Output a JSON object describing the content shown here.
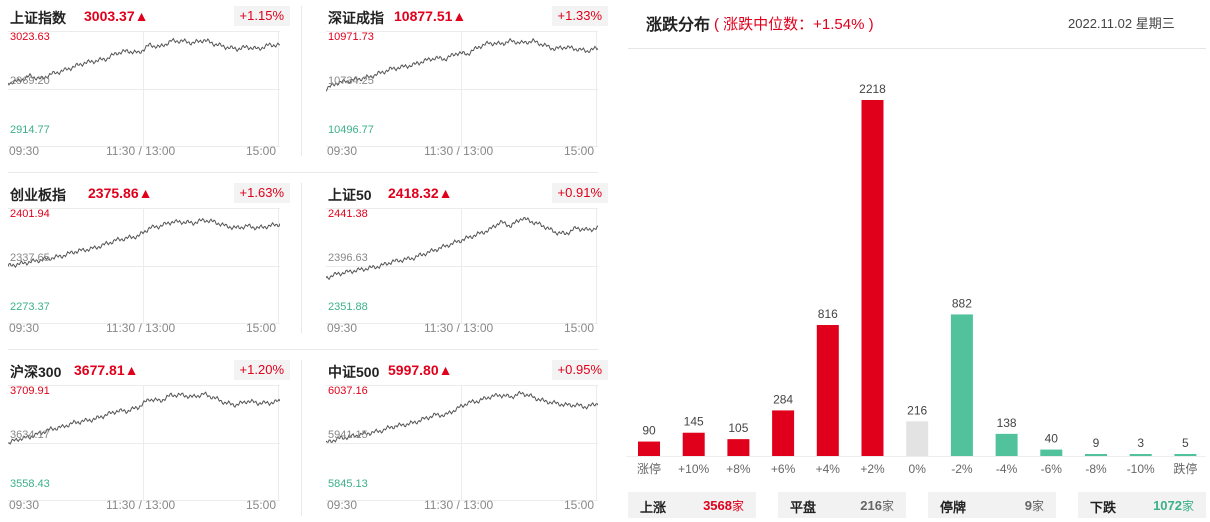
{
  "indices": [
    {
      "name": "上证指数",
      "price": "3003.37▲",
      "change": "+1.15%",
      "high": "3023.63",
      "mid": "2969.20",
      "low": "2914.77",
      "series": [
        52,
        50,
        45,
        48,
        43,
        40,
        36,
        32,
        30,
        28,
        22,
        20,
        22,
        14,
        16,
        10,
        10,
        12,
        9,
        13,
        16,
        18,
        16,
        18,
        14,
        14
      ]
    },
    {
      "name": "深证成指",
      "price": "10877.51▲",
      "change": "+1.33%",
      "high": "10971.73",
      "mid": "10734.25",
      "low": "10496.77",
      "series": [
        58,
        52,
        50,
        48,
        46,
        42,
        38,
        36,
        34,
        30,
        27,
        28,
        22,
        23,
        16,
        12,
        13,
        10,
        12,
        10,
        14,
        18,
        16,
        18,
        20,
        17
      ]
    },
    {
      "name": "创业板指",
      "price": "2375.86▲",
      "change": "+1.63%",
      "high": "2401.94",
      "mid": "2337.65",
      "low": "2273.37",
      "series": [
        58,
        56,
        54,
        52,
        50,
        48,
        44,
        42,
        40,
        36,
        32,
        30,
        28,
        20,
        18,
        14,
        14,
        15,
        12,
        14,
        18,
        20,
        18,
        20,
        18,
        16
      ]
    },
    {
      "name": "上证50",
      "price": "2418.32▲",
      "change": "+0.91%",
      "high": "2441.38",
      "mid": "2396.63",
      "low": "2351.88",
      "series": [
        70,
        66,
        64,
        62,
        60,
        58,
        54,
        52,
        50,
        46,
        42,
        38,
        34,
        30,
        26,
        22,
        14,
        18,
        10,
        14,
        18,
        24,
        26,
        20,
        22,
        20
      ]
    },
    {
      "name": "沪深300",
      "price": "3677.81▲",
      "change": "+1.20%",
      "high": "3709.91",
      "mid": "3634.17",
      "low": "3558.43",
      "series": [
        58,
        54,
        52,
        48,
        44,
        42,
        38,
        36,
        34,
        30,
        26,
        26,
        22,
        14,
        16,
        10,
        10,
        12,
        9,
        13,
        18,
        20,
        16,
        18,
        18,
        16
      ]
    },
    {
      "name": "中证500",
      "price": "5997.80▲",
      "change": "+0.95%",
      "high": "6037.16",
      "mid": "5941.15",
      "low": "5845.13",
      "series": [
        58,
        54,
        52,
        50,
        48,
        46,
        42,
        40,
        38,
        34,
        30,
        30,
        24,
        18,
        16,
        12,
        10,
        12,
        8,
        12,
        16,
        18,
        20,
        20,
        22,
        18
      ]
    }
  ],
  "time_labels": [
    "09:30",
    "11:30 / 13:00",
    "15:00"
  ],
  "distribution": {
    "title": "涨跌分布",
    "subtitle": "( 涨跌中位数：+1.54% )",
    "date": "2022.11.02 星期三"
  },
  "chart_data": {
    "type": "bar",
    "categories": [
      "涨停",
      "+10%",
      "+8%",
      "+6%",
      "+4%",
      "+2%",
      "0%",
      "-2%",
      "-4%",
      "-6%",
      "-8%",
      "-10%",
      "跌停"
    ],
    "values": [
      90,
      145,
      105,
      284,
      816,
      2218,
      216,
      882,
      138,
      40,
      9,
      3,
      5
    ],
    "colors": [
      "#e0001b",
      "#e0001b",
      "#e0001b",
      "#e0001b",
      "#e0001b",
      "#e0001b",
      "#e3e3e3",
      "#51c29b",
      "#51c29b",
      "#51c29b",
      "#51c29b",
      "#51c29b",
      "#51c29b"
    ]
  },
  "summary": [
    {
      "label": "上涨",
      "value": "3568",
      "unit": "家",
      "color": "#e0001b"
    },
    {
      "label": "平盘",
      "value": "216",
      "unit": "家",
      "color": "#666666"
    },
    {
      "label": "停牌",
      "value": "9",
      "unit": "家",
      "color": "#666666"
    },
    {
      "label": "下跌",
      "value": "1072",
      "unit": "家",
      "color": "#3cb08a"
    }
  ]
}
